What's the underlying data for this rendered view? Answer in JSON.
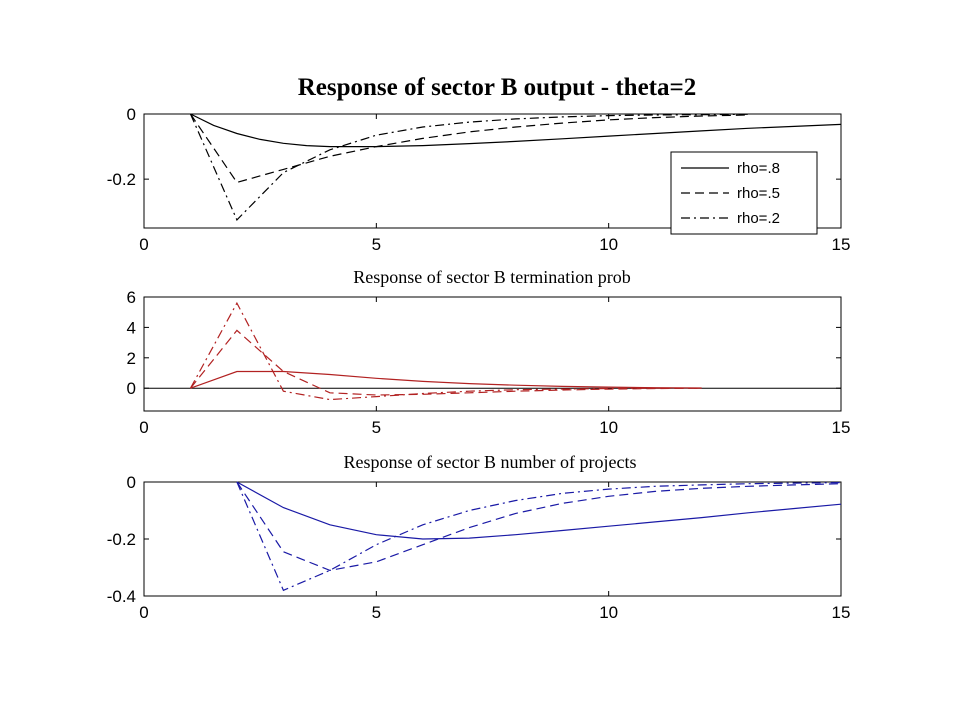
{
  "chart_data": [
    {
      "type": "line",
      "title": "Response of sector B output - theta=2",
      "xlabel": "",
      "ylabel": "",
      "xlim": [
        0,
        15
      ],
      "ylim": [
        -0.35,
        0
      ],
      "x_ticks": [
        0,
        5,
        10,
        15
      ],
      "x_tick_labels": [
        "0",
        "5",
        "10",
        "15"
      ],
      "y_ticks": [
        0,
        -0.2
      ],
      "y_tick_labels": [
        "0",
        "-0.2"
      ],
      "color": "#000000",
      "grid": false,
      "legend": {
        "placement": "bottom-right",
        "entries": [
          {
            "label": "rho=.8",
            "dash": "solid"
          },
          {
            "label": "rho=.5",
            "dash": "dashed"
          },
          {
            "label": "rho=.2",
            "dash": "dashdot"
          }
        ]
      },
      "series": [
        {
          "name": "rho=.8",
          "dash": "solid",
          "x": [
            1,
            1.5,
            2,
            2.5,
            3,
            3.5,
            4,
            5,
            6,
            7,
            8,
            9,
            10,
            11,
            12,
            13,
            14,
            15
          ],
          "y": [
            0,
            -0.035,
            -0.06,
            -0.078,
            -0.09,
            -0.097,
            -0.1,
            -0.1,
            -0.097,
            -0.091,
            -0.084,
            -0.076,
            -0.068,
            -0.06,
            -0.052,
            -0.044,
            -0.038,
            -0.032
          ]
        },
        {
          "name": "rho=.5",
          "dash": "dashed",
          "x": [
            1,
            2,
            3,
            4,
            5,
            6,
            7,
            8,
            9,
            10,
            11,
            12,
            13
          ],
          "y": [
            0,
            -0.21,
            -0.17,
            -0.13,
            -0.1,
            -0.075,
            -0.055,
            -0.04,
            -0.028,
            -0.018,
            -0.011,
            -0.006,
            -0.003
          ]
        },
        {
          "name": "rho=.2",
          "dash": "dashdot",
          "x": [
            1,
            2,
            3,
            4,
            5,
            6,
            7,
            8,
            9,
            10,
            11,
            12,
            13
          ],
          "y": [
            0,
            -0.325,
            -0.18,
            -0.11,
            -0.065,
            -0.04,
            -0.025,
            -0.015,
            -0.009,
            -0.005,
            -0.003,
            -0.002,
            -0.001
          ]
        }
      ]
    },
    {
      "type": "line",
      "title": "Response of sector B termination prob",
      "xlabel": "",
      "ylabel": "",
      "xlim": [
        0,
        15
      ],
      "ylim": [
        -1.5,
        6
      ],
      "x_ticks": [
        0,
        5,
        10,
        15
      ],
      "x_tick_labels": [
        "0",
        "5",
        "10",
        "15"
      ],
      "y_ticks": [
        6,
        4,
        2,
        0
      ],
      "y_tick_labels": [
        "6",
        "4",
        "2",
        "0"
      ],
      "color": "#b22222",
      "grid": false,
      "zero_line": {
        "y": 0,
        "color": "#000000"
      },
      "series": [
        {
          "name": "rho=.8",
          "dash": "solid",
          "x": [
            1,
            2,
            3,
            4,
            5,
            6,
            7,
            8,
            9,
            10,
            11,
            12
          ],
          "y": [
            0,
            1.1,
            1.1,
            0.9,
            0.65,
            0.45,
            0.3,
            0.2,
            0.12,
            0.07,
            0.03,
            0.01
          ]
        },
        {
          "name": "rho=.5",
          "dash": "dashed",
          "x": [
            1,
            2,
            3,
            4,
            5,
            6,
            7,
            8,
            9,
            10,
            11,
            12
          ],
          "y": [
            0,
            3.8,
            1.1,
            -0.3,
            -0.45,
            -0.4,
            -0.3,
            -0.2,
            -0.12,
            -0.06,
            -0.02,
            0
          ]
        },
        {
          "name": "rho=.2",
          "dash": "dashdot",
          "x": [
            1,
            2,
            3,
            4,
            5,
            6,
            7,
            8,
            9,
            10,
            11,
            12
          ],
          "y": [
            0,
            5.6,
            -0.2,
            -0.75,
            -0.55,
            -0.35,
            -0.2,
            -0.1,
            -0.05,
            -0.02,
            0,
            0
          ]
        }
      ]
    },
    {
      "type": "line",
      "title": "Response of sector B number of projects",
      "xlabel": "",
      "ylabel": "",
      "xlim": [
        0,
        15
      ],
      "ylim": [
        -0.4,
        0
      ],
      "x_ticks": [
        0,
        5,
        10,
        15
      ],
      "x_tick_labels": [
        "0",
        "5",
        "10",
        "15"
      ],
      "y_ticks": [
        0,
        -0.2,
        -0.4
      ],
      "y_tick_labels": [
        "0",
        "-0.2",
        "-0.4"
      ],
      "color": "#1a1aa6",
      "grid": false,
      "series": [
        {
          "name": "rho=.8",
          "dash": "solid",
          "x": [
            2,
            3,
            4,
            5,
            6,
            7,
            8,
            9,
            10,
            11,
            12,
            13,
            14,
            15
          ],
          "y": [
            0,
            -0.09,
            -0.15,
            -0.185,
            -0.2,
            -0.197,
            -0.185,
            -0.17,
            -0.155,
            -0.14,
            -0.125,
            -0.108,
            -0.093,
            -0.078
          ]
        },
        {
          "name": "rho=.5",
          "dash": "dashed",
          "x": [
            2,
            3,
            4,
            5,
            6,
            7,
            8,
            9,
            10,
            11,
            12,
            13,
            14,
            15
          ],
          "y": [
            0,
            -0.245,
            -0.31,
            -0.28,
            -0.22,
            -0.16,
            -0.11,
            -0.075,
            -0.05,
            -0.033,
            -0.022,
            -0.015,
            -0.01,
            -0.006
          ]
        },
        {
          "name": "rho=.2",
          "dash": "dashdot",
          "x": [
            2,
            3,
            4,
            5,
            6,
            7,
            8,
            9,
            10,
            11,
            12,
            13,
            14,
            15
          ],
          "y": [
            0,
            -0.38,
            -0.31,
            -0.22,
            -0.15,
            -0.1,
            -0.065,
            -0.04,
            -0.025,
            -0.015,
            -0.01,
            -0.006,
            -0.004,
            -0.002
          ]
        }
      ]
    }
  ]
}
